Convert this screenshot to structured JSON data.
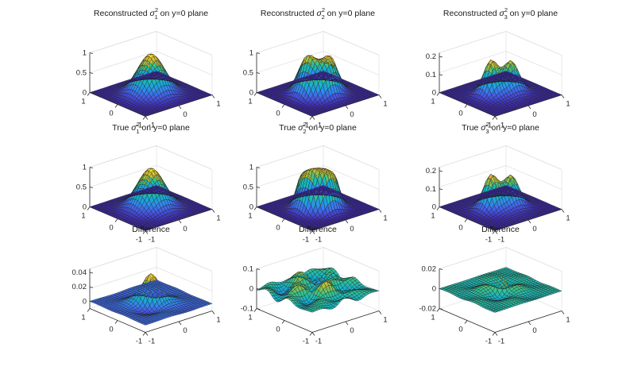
{
  "figure": {
    "rows": [
      [
        {
          "title": {
            "pre": "Reconstructed ",
            "sym": "σ",
            "sup": "2",
            "sub": "1",
            "post": " on y=0 plane"
          },
          "surface": "peak",
          "amp": 1.0,
          "zlim": [
            0,
            1
          ],
          "zticks": [
            "0",
            "0.5",
            "1"
          ]
        },
        {
          "title": {
            "pre": "Reconstructed ",
            "sym": "σ",
            "sup": "2",
            "sub": "2",
            "post": " on y=0 plane"
          },
          "surface": "plateau_wavy",
          "amp": 1.0,
          "zlim": [
            0,
            1
          ],
          "zticks": [
            "0",
            "0.5",
            "1"
          ]
        },
        {
          "title": {
            "pre": "Reconstructed ",
            "sym": "σ",
            "sup": "2",
            "sub": "3",
            "post": " on y=0 plane"
          },
          "surface": "double_peak",
          "amp": 0.22,
          "zlim": [
            0,
            0.22
          ],
          "zticks": [
            "0",
            "0.1",
            "0.2"
          ]
        }
      ],
      [
        {
          "title": {
            "pre": "True ",
            "sym": "σ",
            "sup": "2",
            "sub": "1",
            "post": " on y=0 plane"
          },
          "surface": "peak",
          "amp": 1.0,
          "zlim": [
            0,
            1
          ],
          "zticks": [
            "0",
            "0.5",
            "1"
          ]
        },
        {
          "title": {
            "pre": "True ",
            "sym": "σ",
            "sup": "2",
            "sub": "2",
            "post": " on y=0 plane"
          },
          "surface": "plateau_ring",
          "amp": 1.0,
          "zlim": [
            0,
            1
          ],
          "zticks": [
            "0",
            "0.5",
            "1"
          ]
        },
        {
          "title": {
            "pre": "True ",
            "sym": "σ",
            "sup": "2",
            "sub": "3",
            "post": " on y=0 plane"
          },
          "surface": "double_peak",
          "amp": 0.22,
          "zlim": [
            0,
            0.22
          ],
          "zticks": [
            "0",
            "0.1",
            "0.2"
          ]
        }
      ],
      [
        {
          "title": {
            "pre": "Difference",
            "sym": "",
            "sup": "",
            "sub": "",
            "post": ""
          },
          "surface": "diff_peak",
          "amp": 0.04,
          "zlim": [
            -0.01,
            0.045
          ],
          "zticks": [
            "0",
            "0.02",
            "0.04"
          ]
        },
        {
          "title": {
            "pre": "Difference",
            "sym": "",
            "sup": "",
            "sub": "",
            "post": ""
          },
          "surface": "diff_wavy",
          "amp": 0.1,
          "zlim": [
            -0.1,
            0.1
          ],
          "zticks": [
            "-0.1",
            "0",
            "0.1"
          ]
        },
        {
          "title": {
            "pre": "Difference",
            "sym": "",
            "sup": "",
            "sub": "",
            "post": ""
          },
          "surface": "diff_spike",
          "amp": 0.02,
          "zlim": [
            -0.02,
            0.02
          ],
          "zticks": [
            "-0.02",
            "0",
            "0.02"
          ]
        }
      ]
    ],
    "axis_tick_labels": {
      "left_axis": [
        "1",
        "0",
        "-1"
      ],
      "right_axis": [
        "-1",
        "0",
        "1"
      ]
    },
    "colormap": [
      "#3e26a8",
      "#4758e4",
      "#2f8cf0",
      "#12b3c9",
      "#38c48c",
      "#a5be3a",
      "#f0ba38",
      "#f9fb15"
    ]
  },
  "chart_data": [
    {
      "type": "surface",
      "title": "Reconstructed σ₁² on y=0 plane",
      "x": [
        -1,
        1
      ],
      "y": [
        -1,
        1
      ],
      "z_range": [
        0,
        1
      ],
      "shape": "single central peak, max ≈ 1"
    },
    {
      "type": "surface",
      "title": "Reconstructed σ₂² on y=0 plane",
      "x": [
        -1,
        1
      ],
      "y": [
        -1,
        1
      ],
      "z_range": [
        0,
        1
      ],
      "shape": "flat-topped plateau with wavy ridge, max ≈ 1"
    },
    {
      "type": "surface",
      "title": "Reconstructed σ₃² on y=0 plane",
      "x": [
        -1,
        1
      ],
      "y": [
        -1,
        1
      ],
      "z_range": [
        0,
        0.2
      ],
      "shape": "twin peaks, max ≈ 0.2"
    },
    {
      "type": "surface",
      "title": "True σ₁² on y=0 plane",
      "x": [
        -1,
        1
      ],
      "y": [
        -1,
        1
      ],
      "z_range": [
        0,
        1
      ],
      "shape": "single central peak, max ≈ 1"
    },
    {
      "type": "surface",
      "title": "True σ₂² on y=0 plane",
      "x": [
        -1,
        1
      ],
      "y": [
        -1,
        1
      ],
      "z_range": [
        0,
        1
      ],
      "shape": "flat-topped plateau with raised rim, max ≈ 1"
    },
    {
      "type": "surface",
      "title": "True σ₃² on y=0 plane",
      "x": [
        -1,
        1
      ],
      "y": [
        -1,
        1
      ],
      "z_range": [
        0,
        0.2
      ],
      "shape": "twin peaks, max ≈ 0.2"
    },
    {
      "type": "surface",
      "title": "Difference",
      "x": [
        -1,
        1
      ],
      "y": [
        -1,
        1
      ],
      "z_range": [
        -0.01,
        0.04
      ],
      "shape": "central bump ≈ 0.04 with small ripples"
    },
    {
      "type": "surface",
      "title": "Difference",
      "x": [
        -1,
        1
      ],
      "y": [
        -1,
        1
      ],
      "z_range": [
        -0.1,
        0.1
      ],
      "shape": "oscillating error ±0.1"
    },
    {
      "type": "surface",
      "title": "Difference",
      "x": [
        -1,
        1
      ],
      "y": [
        -1,
        1
      ],
      "z_range": [
        -0.02,
        0.02
      ],
      "shape": "small central spike ≈ 0.02 with ripples"
    }
  ]
}
